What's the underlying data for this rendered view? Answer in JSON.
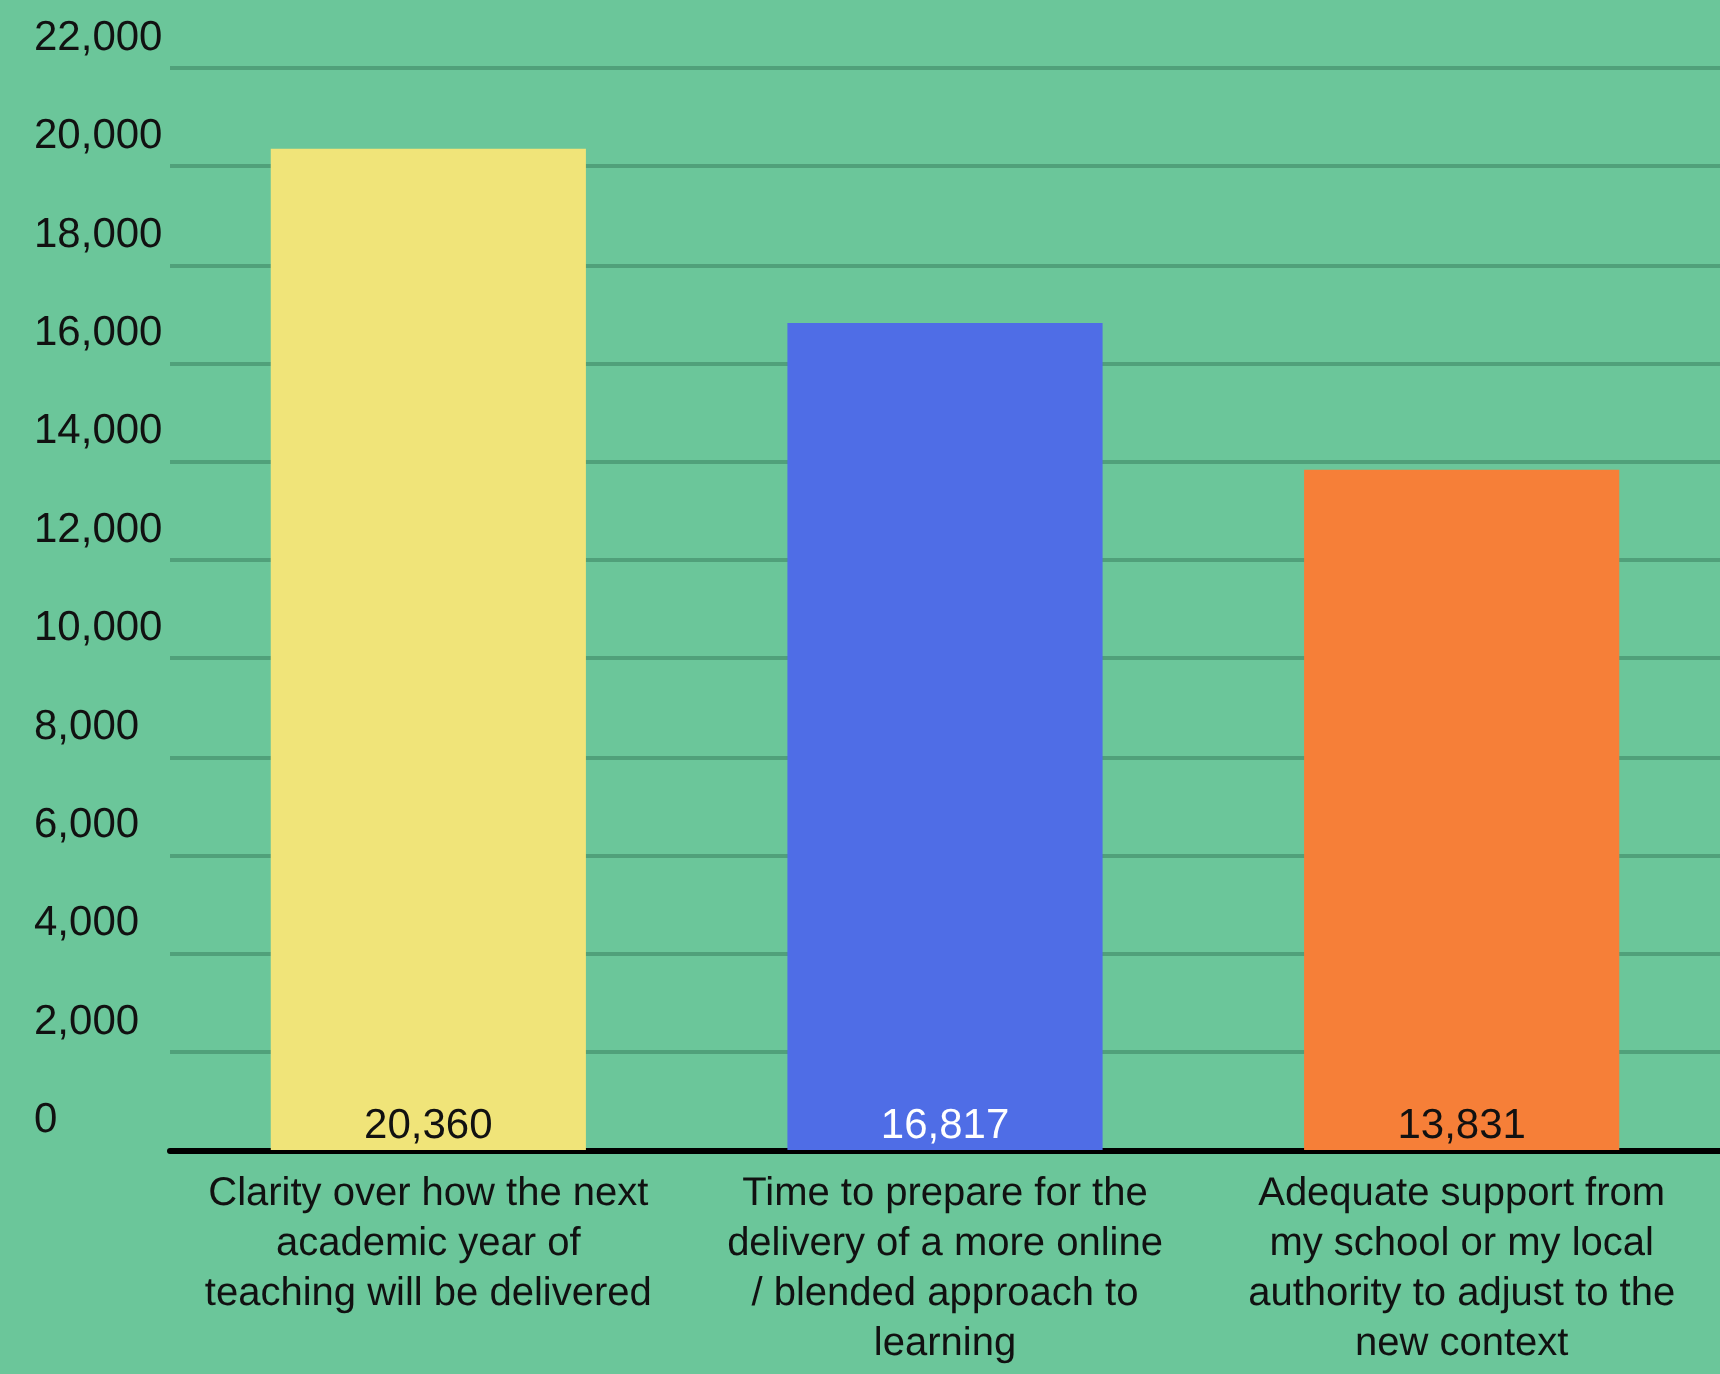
{
  "chart_data": {
    "type": "bar",
    "categories": [
      "Clarity over how the next\nacademic year of\nteaching will be delivered",
      "Time to prepare for the\ndelivery of a more online\n/ blended approach to\nlearning",
      "Adequate support from\nmy school or my local\nauthority to adjust to the\nnew context"
    ],
    "values": [
      20360,
      16817,
      13831
    ],
    "value_labels": [
      "20,360",
      "16,817",
      "13,831"
    ],
    "colors": [
      "#f0e479",
      "#4f6de6",
      "#f67f38"
    ],
    "ylim": [
      0,
      22000
    ],
    "yticks": [
      {
        "value": 0,
        "label": "0"
      },
      {
        "value": 2000,
        "label": "2,000"
      },
      {
        "value": 4000,
        "label": "4,000"
      },
      {
        "value": 6000,
        "label": "6,000"
      },
      {
        "value": 8000,
        "label": "8,000"
      },
      {
        "value": 10000,
        "label": "10,000"
      },
      {
        "value": 12000,
        "label": "12,000"
      },
      {
        "value": 14000,
        "label": "14,000"
      },
      {
        "value": 16000,
        "label": "16,000"
      },
      {
        "value": 18000,
        "label": "18,000"
      },
      {
        "value": 20000,
        "label": "20,000"
      },
      {
        "value": 22000,
        "label": "22,000"
      }
    ],
    "grid": "y"
  }
}
